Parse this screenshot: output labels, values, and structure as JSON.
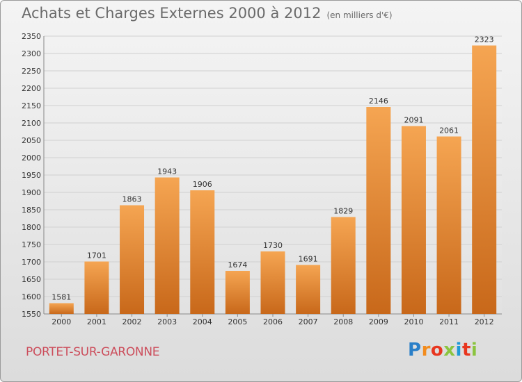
{
  "header": {
    "title": "Achats et Charges Externes 2000 à 2012",
    "unit": "(en milliers d'€)"
  },
  "footer": {
    "city": "PORTET-SUR-GARONNE",
    "logo_text": "Proxiti",
    "logo_colors": [
      "#2a7fc8",
      "#f28c1e",
      "#e8361f",
      "#8bc43f",
      "#1f9ad6",
      "#e8361f",
      "#8bc43f"
    ]
  },
  "colors": {
    "bar_top": "#f5a552",
    "bar_bottom": "#c8681a",
    "grid": "#d0d0d0",
    "axis": "#888888",
    "city": "#cc4e5c"
  },
  "chart_data": {
    "type": "bar",
    "title": "Achats et Charges Externes 2000 à 2012",
    "subtitle": "(en milliers d'€)",
    "xlabel": "",
    "ylabel": "",
    "categories": [
      "2000",
      "2001",
      "2002",
      "2003",
      "2004",
      "2005",
      "2006",
      "2007",
      "2008",
      "2009",
      "2010",
      "2011",
      "2012"
    ],
    "values": [
      1581,
      1701,
      1863,
      1943,
      1906,
      1674,
      1730,
      1691,
      1829,
      2146,
      2091,
      2061,
      2323
    ],
    "ylim": [
      1550,
      2350
    ],
    "yticks": [
      1550,
      1600,
      1650,
      1700,
      1750,
      1800,
      1850,
      1900,
      1950,
      2000,
      2050,
      2100,
      2150,
      2200,
      2250,
      2300,
      2350
    ],
    "grid": true,
    "data_labels": true
  }
}
